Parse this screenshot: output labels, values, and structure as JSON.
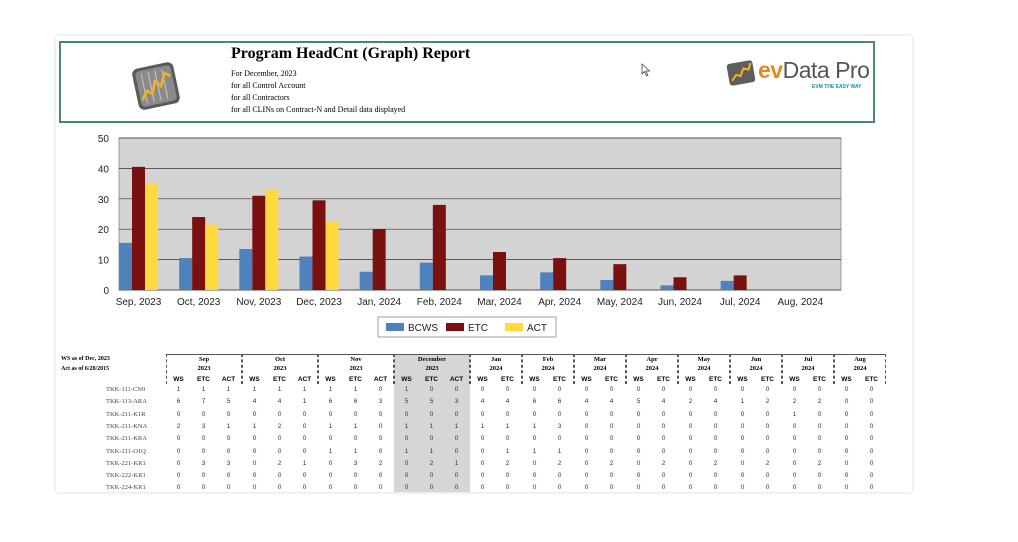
{
  "header": {
    "title": "Program HeadCnt (Graph) Report",
    "lines": [
      "For December, 2023",
      "for all Control Account",
      "for all Contractors",
      "for all CLINs on Contract-N and Detail data displayed"
    ],
    "brand": {
      "ev": "ev",
      "name": "Data Pro",
      "tagline": "EVM THE EASY WAY"
    }
  },
  "colors": {
    "bcws": "#4f81bd",
    "etc": "#7b1010",
    "act": "#ffd93d",
    "plot_bg": "#d3d3d3",
    "header_border": "#4e8087",
    "highlight_col": "#d6d6d6"
  },
  "chart_data": {
    "type": "bar",
    "categories": [
      "Sep, 2023",
      "Oct, 2023",
      "Nov, 2023",
      "Dec, 2023",
      "Jan, 2024",
      "Feb, 2024",
      "Mar, 2024",
      "Apr, 2024",
      "May, 2024",
      "Jun, 2024",
      "Jul, 2024",
      "Aug, 2024"
    ],
    "series": [
      {
        "name": "BCWS",
        "values": [
          15.5,
          10.5,
          13.5,
          11,
          6,
          9,
          4.8,
          5.8,
          3.3,
          1.5,
          3,
          0
        ]
      },
      {
        "name": "ETC",
        "values": [
          40.5,
          24,
          31,
          29.5,
          20,
          28,
          12.5,
          10.5,
          8.5,
          4.2,
          4.8,
          0
        ]
      },
      {
        "name": "ACT",
        "values": [
          35,
          21.5,
          33,
          22.5,
          0,
          0,
          0,
          0,
          0,
          0,
          0,
          0
        ]
      }
    ],
    "ylim": [
      0,
      50
    ],
    "yticks": [
      0,
      10,
      20,
      30,
      40,
      50
    ],
    "grid": true,
    "legend": "bottom"
  },
  "table": {
    "meta": [
      "WS as of Dec, 2023",
      "Act as of 6/28/2015"
    ],
    "months": [
      {
        "m": "Sep",
        "y": "2023",
        "cols": [
          "WS",
          "ETC",
          "ACT"
        ]
      },
      {
        "m": "Oct",
        "y": "2023",
        "cols": [
          "WS",
          "ETC",
          "ACT"
        ]
      },
      {
        "m": "Nov",
        "y": "2023",
        "cols": [
          "WS",
          "ETC",
          "ACT"
        ]
      },
      {
        "m": "December",
        "y": "2023",
        "cols": [
          "WS",
          "ETC",
          "ACT"
        ]
      },
      {
        "m": "Jan",
        "y": "2024",
        "cols": [
          "WS",
          "ETC"
        ]
      },
      {
        "m": "Feb",
        "y": "2024",
        "cols": [
          "WS",
          "ETC"
        ]
      },
      {
        "m": "Mar",
        "y": "2024",
        "cols": [
          "WS",
          "ETC"
        ]
      },
      {
        "m": "Apr",
        "y": "2024",
        "cols": [
          "WS",
          "ETC"
        ]
      },
      {
        "m": "May",
        "y": "2024",
        "cols": [
          "WS",
          "ETC"
        ]
      },
      {
        "m": "Jun",
        "y": "2024",
        "cols": [
          "WS",
          "ETC"
        ]
      },
      {
        "m": "Jul",
        "y": "2024",
        "cols": [
          "WS",
          "ETC"
        ]
      },
      {
        "m": "Aug",
        "y": "2024",
        "cols": [
          "WS",
          "ETC"
        ]
      }
    ],
    "rows": [
      {
        "name": "TKK-111-CN0",
        "v": [
          "1",
          "1",
          "1",
          "1",
          "1",
          "1",
          "1",
          "1",
          "0",
          "1",
          "0",
          "0",
          "0",
          "0",
          "0",
          "0",
          "0",
          "0",
          "0",
          "0",
          "0",
          "0",
          "0",
          "0",
          "0",
          "0",
          "0",
          "0",
          "0",
          "0"
        ]
      },
      {
        "name": "TKK-113-ARA",
        "v": [
          "6",
          "7",
          "5",
          "4",
          "4",
          "1",
          "6",
          "6",
          "3",
          "5",
          "5",
          "3",
          "4",
          "4",
          "6",
          "6",
          "4",
          "4",
          "5",
          "4",
          "2",
          "4",
          "1",
          "2",
          "2",
          "2",
          "0",
          "0",
          "0",
          "0"
        ]
      },
      {
        "name": "TKK-211-K1R",
        "v": [
          "0",
          "0",
          "0",
          "0",
          "0",
          "0",
          "0",
          "0",
          "0",
          "0",
          "0",
          "0",
          "0",
          "0",
          "0",
          "0",
          "0",
          "0",
          "0",
          "0",
          "0",
          "0",
          "0",
          "0",
          "1",
          "0",
          "0",
          "0",
          "0",
          "0"
        ]
      },
      {
        "name": "TKK-211-KNA",
        "v": [
          "2",
          "3",
          "1",
          "1",
          "2",
          "0",
          "1",
          "1",
          "0",
          "1",
          "1",
          "1",
          "1",
          "1",
          "1",
          "3",
          "0",
          "0",
          "0",
          "0",
          "0",
          "0",
          "0",
          "0",
          "0",
          "0",
          "0",
          "0",
          "0",
          "0"
        ]
      },
      {
        "name": "TKK-211-KRA",
        "v": [
          "0",
          "0",
          "0",
          "0",
          "0",
          "0",
          "0",
          "0",
          "0",
          "0",
          "0",
          "0",
          "0",
          "0",
          "0",
          "0",
          "0",
          "0",
          "0",
          "0",
          "0",
          "0",
          "0",
          "0",
          "0",
          "0",
          "0",
          "0",
          "0",
          "0"
        ]
      },
      {
        "name": "TKK-211-O1Q",
        "v": [
          "0",
          "0",
          "0",
          "0",
          "0",
          "0",
          "1",
          "1",
          "0",
          "1",
          "1",
          "0",
          "0",
          "1",
          "1",
          "1",
          "0",
          "0",
          "0",
          "0",
          "0",
          "0",
          "0",
          "0",
          "0",
          "0",
          "0",
          "0",
          "0",
          "0"
        ]
      },
      {
        "name": "TKK-221-KR1",
        "v": [
          "0",
          "3",
          "3",
          "0",
          "2",
          "1",
          "0",
          "3",
          "2",
          "0",
          "2",
          "1",
          "0",
          "2",
          "0",
          "2",
          "0",
          "2",
          "0",
          "2",
          "0",
          "2",
          "0",
          "2",
          "0",
          "2",
          "0",
          "0",
          "0",
          "0"
        ]
      },
      {
        "name": "TKK-222-KR1",
        "v": [
          "0",
          "0",
          "0",
          "0",
          "0",
          "0",
          "0",
          "0",
          "0",
          "0",
          "0",
          "0",
          "0",
          "0",
          "0",
          "0",
          "0",
          "0",
          "0",
          "0",
          "0",
          "0",
          "0",
          "0",
          "0",
          "0",
          "0",
          "0",
          "0",
          "0"
        ]
      },
      {
        "name": "TKK-224-KR1",
        "v": [
          "0",
          "0",
          "0",
          "0",
          "0",
          "0",
          "0",
          "0",
          "0",
          "0",
          "0",
          "0",
          "0",
          "0",
          "0",
          "0",
          "0",
          "0",
          "0",
          "0",
          "0",
          "0",
          "0",
          "0",
          "0",
          "0",
          "0",
          "0",
          "0",
          "0"
        ]
      }
    ]
  }
}
